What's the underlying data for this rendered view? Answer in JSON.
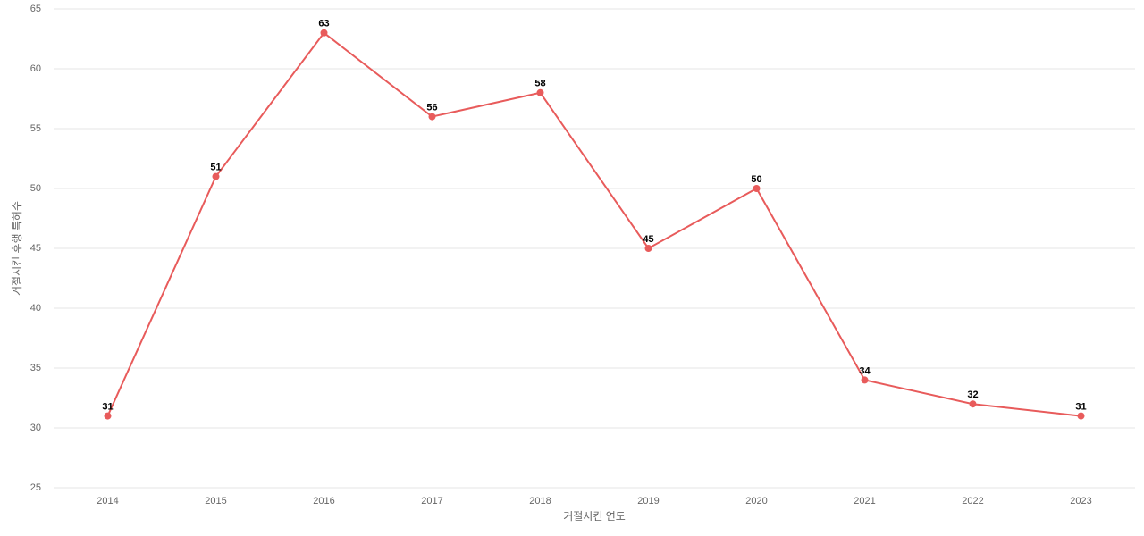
{
  "chart_data": {
    "type": "line",
    "x_label": "거절시킨 연도",
    "y_label": "거절시킨 후행 특허수",
    "categories": [
      "2014",
      "2015",
      "2016",
      "2017",
      "2018",
      "2019",
      "2020",
      "2021",
      "2022",
      "2023"
    ],
    "series": [
      {
        "color": "#e85b5b",
        "values": [
          31,
          51,
          63,
          56,
          58,
          45,
          50,
          34,
          32,
          31
        ]
      }
    ],
    "ylim": [
      25,
      65
    ],
    "yticks": [
      25,
      30,
      35,
      40,
      45,
      50,
      55,
      60,
      65
    ],
    "grid": true
  }
}
